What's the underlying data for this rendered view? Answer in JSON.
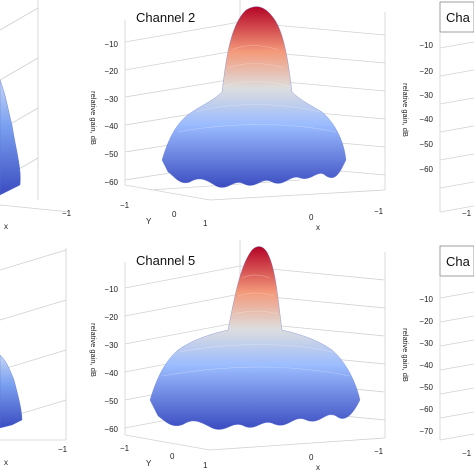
{
  "chart_data": [
    {
      "type": "surface",
      "panel": "top-left",
      "title": "",
      "xlabel": "x",
      "ylabel": "",
      "zlabel": "",
      "x_ticks": [
        "−1"
      ],
      "y_ticks": [],
      "z_ticks": [],
      "zlim": [
        -60,
        0
      ]
    },
    {
      "type": "surface",
      "panel": "top-center",
      "title": "Channel 2",
      "xlabel": "x",
      "ylabel": "Y",
      "zlabel": "relative gain, dB",
      "x_ticks": [
        "0",
        "−1"
      ],
      "y_ticks": [
        "−1",
        "0",
        "1"
      ],
      "z_ticks": [
        "−10",
        "−20",
        "−30",
        "−40",
        "−50",
        "−60"
      ],
      "zlim": [
        -65,
        0
      ],
      "peak_db": 0,
      "floor_db": [
        -50,
        -60
      ],
      "colormap": [
        "#3b4cc0",
        "#dddddd",
        "#b40426"
      ]
    },
    {
      "type": "surface",
      "panel": "top-right",
      "title": "Cha",
      "xlabel": "",
      "ylabel": "",
      "zlabel": "relative gain, dB",
      "x_ticks": [
        "−1"
      ],
      "y_ticks": [],
      "z_ticks": [
        "−10",
        "−20",
        "−30",
        "−40",
        "−50",
        "−60"
      ],
      "zlim": [
        -65,
        0
      ]
    },
    {
      "type": "surface",
      "panel": "bottom-left",
      "title": "",
      "xlabel": "x",
      "ylabel": "",
      "zlabel": "",
      "x_ticks": [
        "−1"
      ],
      "y_ticks": [],
      "z_ticks": [],
      "zlim": [
        -70,
        0
      ]
    },
    {
      "type": "surface",
      "panel": "bottom-center",
      "title": "Channel 5",
      "xlabel": "x",
      "ylabel": "Y",
      "zlabel": "relative gain, dB",
      "x_ticks": [
        "0",
        "−1"
      ],
      "y_ticks": [
        "−1",
        "0",
        "1"
      ],
      "z_ticks": [
        "−10",
        "−20",
        "−30",
        "−40",
        "−50",
        "−60"
      ],
      "zlim": [
        -65,
        0
      ],
      "peak_db": 0,
      "floor_db": [
        -45,
        -62
      ],
      "colormap": [
        "#3b4cc0",
        "#dddddd",
        "#b40426"
      ]
    },
    {
      "type": "surface",
      "panel": "bottom-right",
      "title": "Cha",
      "xlabel": "",
      "ylabel": "",
      "zlabel": "relative gain, dB",
      "x_ticks": [
        "−1"
      ],
      "y_ticks": [],
      "z_ticks": [
        "−10",
        "−20",
        "−30",
        "−40",
        "−50",
        "−60",
        "−70"
      ],
      "zlim": [
        -75,
        0
      ]
    }
  ]
}
